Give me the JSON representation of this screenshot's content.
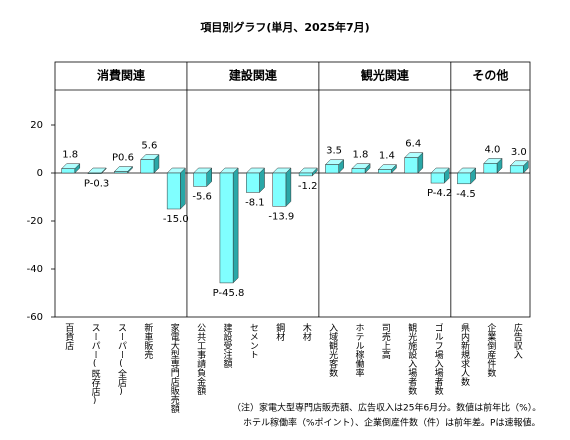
{
  "chart_data": {
    "type": "bar",
    "title": "項目別グラフ(単月、2025年7月)",
    "categories": [
      "百貨店",
      "スーパー(既存店)",
      "スーパー(全店)",
      "新車販売",
      "家電大型専門店販売額",
      "公共工事請負金額",
      "建設受注額",
      "セメント",
      "鋼材",
      "木材",
      "入域観光客数",
      "ホテル稼働率",
      "司売上高",
      "観光施設入場者数",
      "ゴルフ場入場者数",
      "県内新規求人数",
      "企業倒産件数",
      "広告収入"
    ],
    "values": [
      1.8,
      -0.3,
      0.6,
      5.6,
      -15.0,
      -5.6,
      -45.8,
      -8.1,
      -13.9,
      -1.2,
      3.5,
      1.8,
      1.4,
      6.4,
      -4.2,
      -4.5,
      4.0,
      3.0
    ],
    "value_labels": [
      "1.8",
      "P-0.3",
      "P0.6",
      "5.6",
      "-15.0",
      "-5.6",
      "P-45.8",
      "-8.1",
      "-13.9",
      "-1.2",
      "3.5",
      "1.8",
      "1.4",
      "6.4",
      "P-4.2",
      "-4.5",
      "4.0",
      "3.0"
    ],
    "groups": [
      {
        "name": "消費関連",
        "count": 5
      },
      {
        "name": "建設関連",
        "count": 5
      },
      {
        "name": "観光関連",
        "count": 5
      },
      {
        "name": "その他",
        "count": 3
      }
    ],
    "color": "#80ffff",
    "ylim": [
      -60,
      20
    ],
    "yticks": [
      -60,
      -40,
      -20,
      0,
      20
    ],
    "notes": [
      "（注）家電大型専門店販売額、広告収入は25年6月分。数値は前年比（%）。",
      "ホテル稼働率（%ポイント）、企業倒産件数（件）は前年差。Pは速報値。"
    ]
  }
}
